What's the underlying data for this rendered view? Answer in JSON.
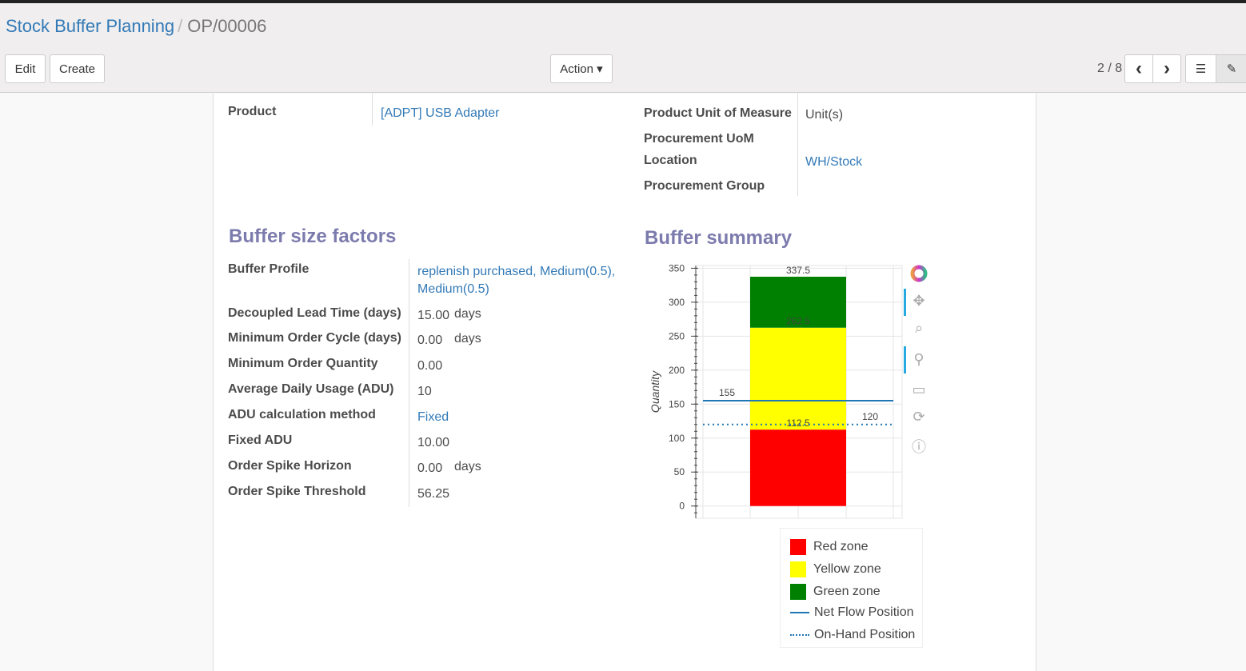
{
  "breadcrumb": {
    "parent": "Stock Buffer Planning",
    "current": "OP/00006"
  },
  "toolbar": {
    "edit": "Edit",
    "create": "Create",
    "action": "Action ▾",
    "pager": "2 / 8",
    "prev": "‹",
    "next": "›"
  },
  "form": {
    "product_label": "Product",
    "product_value": "[ADPT] USB Adapter",
    "uom_label": "Product Unit of Measure",
    "uom_value": "Unit(s)",
    "proc_uom_label": "Procurement UoM",
    "location_label": "Location",
    "location_value": "WH/Stock",
    "proc_group_label": "Procurement Group"
  },
  "factors": {
    "title": "Buffer size factors",
    "rows": [
      {
        "label": "Buffer Profile",
        "value": "replenish purchased, Medium(0.5),",
        "value2": "Medium(0.5)",
        "link": true
      },
      {
        "label": "Decoupled Lead Time (days)",
        "value": "15.00",
        "unit": "days"
      },
      {
        "label": "Minimum Order Cycle (days)",
        "value": "0.00",
        "unit": "days"
      },
      {
        "label": "Minimum Order Quantity",
        "value": "0.00"
      },
      {
        "label": "Average Daily Usage (ADU)",
        "value": "10"
      },
      {
        "label": "ADU calculation method",
        "value": "Fixed",
        "link": true
      },
      {
        "label": "Fixed ADU",
        "value": "10.00"
      },
      {
        "label": "Order Spike Horizon",
        "value": "0.00",
        "unit": "days"
      },
      {
        "label": "Order Spike Threshold",
        "value": "56.25"
      }
    ]
  },
  "summary": {
    "title": "Buffer summary"
  },
  "chart_data": {
    "type": "bar",
    "ylabel": "Quantity",
    "ylim": [
      -18,
      354
    ],
    "yticks": [
      0,
      50,
      100,
      150,
      200,
      250,
      300,
      350
    ],
    "grid": true,
    "legend": "bottom",
    "zones": [
      {
        "name": "Red zone",
        "bottom": 0,
        "top": 112.5,
        "color": "#ff0000"
      },
      {
        "name": "Yellow zone",
        "bottom": 112.5,
        "top": 262.5,
        "color": "#ffff00"
      },
      {
        "name": "Green zone",
        "bottom": 262.5,
        "top": 337.5,
        "color": "#008000"
      }
    ],
    "labels": [
      "112.5",
      "262.5",
      "337.5"
    ],
    "lines": [
      {
        "name": "Net Flow Position",
        "value": 155,
        "label": "155",
        "style": "solid",
        "color": "#1f77b4"
      },
      {
        "name": "On-Hand Position",
        "value": 120,
        "label": "120",
        "style": "dotted",
        "color": "#1f77b4"
      }
    ]
  }
}
